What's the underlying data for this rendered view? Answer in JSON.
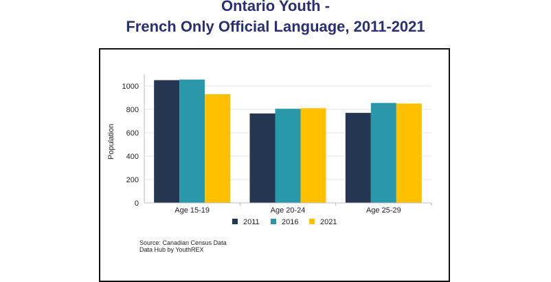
{
  "title": {
    "line1": "Ontario Youth -",
    "line2": "French Only Official Language, 2011-2021"
  },
  "source": {
    "line1": "Source: Canadian Census Data",
    "line2": "Data Hub by YouthREX"
  },
  "chart_data": {
    "type": "bar",
    "categories": [
      "Age 15-19",
      "Age 20-24",
      "Age 25-29"
    ],
    "series": [
      {
        "name": "2011",
        "values": [
          1050,
          765,
          770
        ],
        "color": "#243650"
      },
      {
        "name": "2016",
        "values": [
          1055,
          805,
          855
        ],
        "color": "#2898aa"
      },
      {
        "name": "2021",
        "values": [
          930,
          810,
          850
        ],
        "color": "#ffc000"
      }
    ],
    "xlabel": "",
    "ylabel": "Population",
    "ylim": [
      0,
      1100
    ],
    "yticks": [
      0,
      200,
      400,
      600,
      800,
      1000
    ],
    "grid": true,
    "legend": "bottom"
  }
}
